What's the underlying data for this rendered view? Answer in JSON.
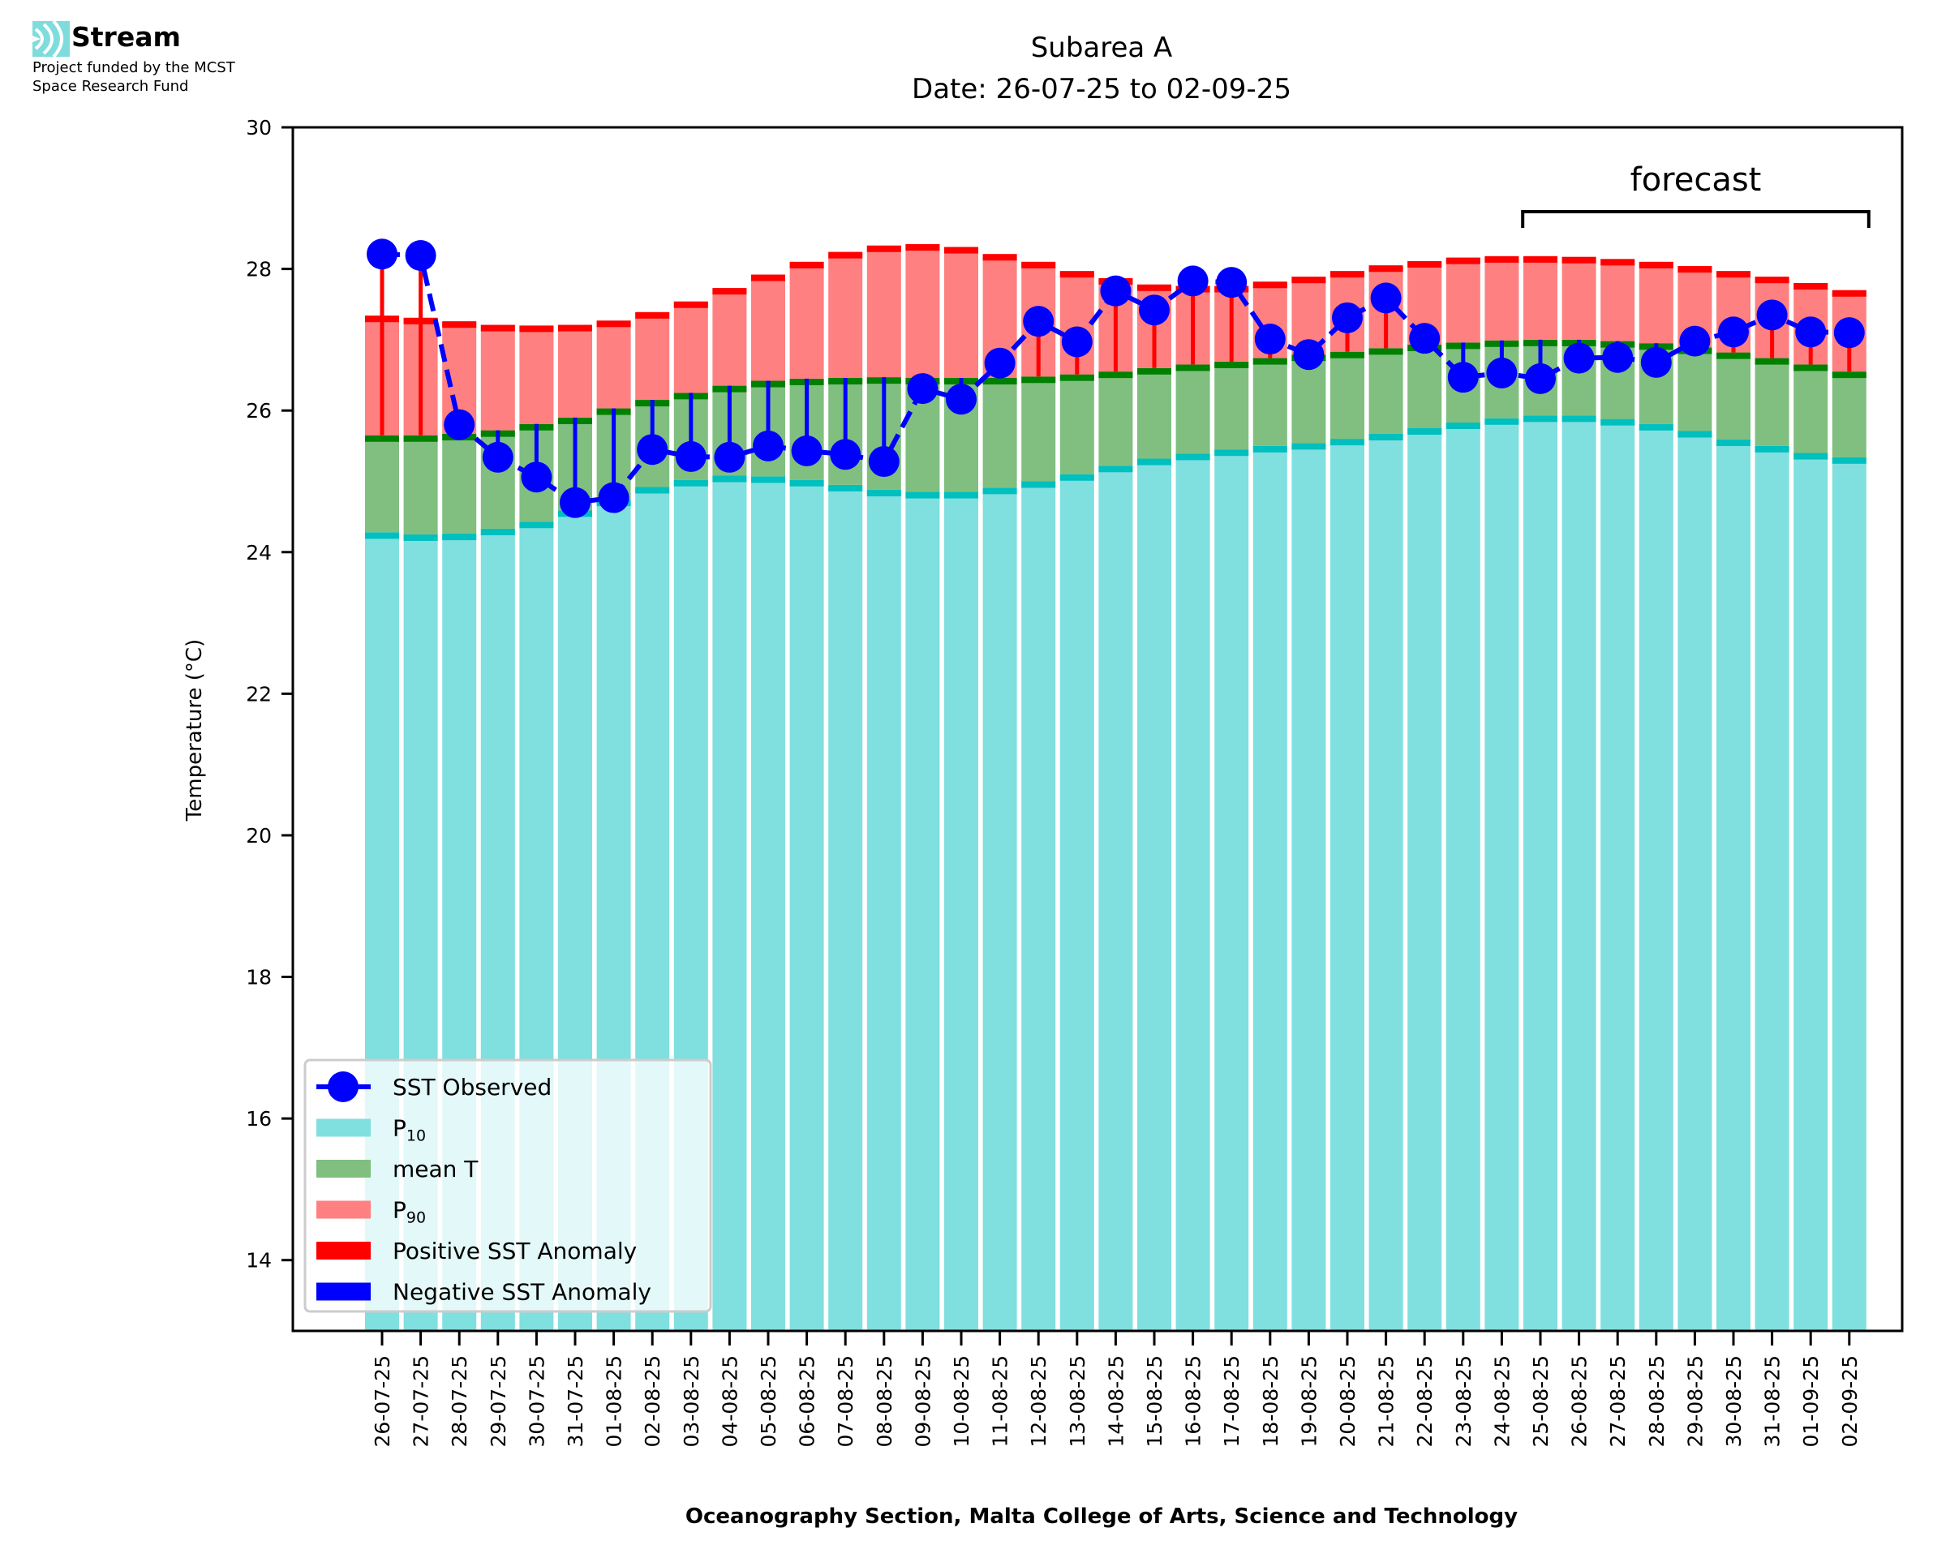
{
  "branding": {
    "logo_icon": "stream-waves-icon",
    "name": "Stream",
    "subtitle_line1": "Project funded by the MCST",
    "subtitle_line2": "Space Research Fund"
  },
  "colors": {
    "p10_fill": "#80dfdf",
    "p10_edge": "#00bfbf",
    "mean_fill": "#80bf80",
    "mean_edge": "#008000",
    "p90_fill": "#ff8080",
    "p90_edge": "#ff0000",
    "observed": "#0000ff",
    "positive_anomaly": "#ff0000",
    "negative_anomaly": "#0000ff"
  },
  "chart_data": {
    "type": "bar",
    "title": "Subarea A",
    "subtitle": "Date: 26-07-25 to 02-09-25",
    "xlabel": "Oceanography Section, Malta College of Arts, Science and Technology",
    "ylabel": "Temperature (°C)",
    "ylim": [
      13,
      30
    ],
    "yticks": [
      14,
      16,
      18,
      20,
      22,
      24,
      26,
      28,
      30
    ],
    "grid": false,
    "legend_position": "bottom-left",
    "annotation": {
      "text": "forecast",
      "from_category": "25-08-25",
      "to_category": "02-09-25"
    },
    "categories": [
      "26-07-25",
      "27-07-25",
      "28-07-25",
      "29-07-25",
      "30-07-25",
      "31-07-25",
      "01-08-25",
      "02-08-25",
      "03-08-25",
      "04-08-25",
      "05-08-25",
      "06-08-25",
      "07-08-25",
      "08-08-25",
      "09-08-25",
      "10-08-25",
      "11-08-25",
      "12-08-25",
      "13-08-25",
      "14-08-25",
      "15-08-25",
      "16-08-25",
      "17-08-25",
      "18-08-25",
      "19-08-25",
      "20-08-25",
      "21-08-25",
      "22-08-25",
      "23-08-25",
      "24-08-25",
      "25-08-25",
      "26-08-25",
      "27-08-25",
      "28-08-25",
      "29-08-25",
      "30-08-25",
      "31-08-25",
      "01-09-25",
      "02-09-25"
    ],
    "series": [
      {
        "name": "SST Observed",
        "kind": "line-marker",
        "style": "dashed",
        "values": [
          28.21,
          28.19,
          25.8,
          25.34,
          25.06,
          24.7,
          24.77,
          25.45,
          25.35,
          25.34,
          25.5,
          25.43,
          25.38,
          25.28,
          26.31,
          26.16,
          26.67,
          27.26,
          26.97,
          27.69,
          27.42,
          27.83,
          27.81,
          27.01,
          26.79,
          27.31,
          27.59,
          27.02,
          26.47,
          26.53,
          26.45,
          26.74,
          26.75,
          26.68,
          26.98,
          27.11,
          27.35,
          27.11,
          27.1
        ]
      },
      {
        "name": "P10",
        "kind": "bar",
        "values": [
          24.28,
          24.25,
          24.26,
          24.33,
          24.43,
          24.59,
          24.74,
          24.92,
          25.02,
          25.08,
          25.07,
          25.02,
          24.95,
          24.88,
          24.85,
          24.85,
          24.91,
          25.0,
          25.1,
          25.22,
          25.32,
          25.39,
          25.45,
          25.5,
          25.54,
          25.6,
          25.67,
          25.75,
          25.83,
          25.89,
          25.93,
          25.93,
          25.88,
          25.81,
          25.71,
          25.59,
          25.5,
          25.4,
          25.34
        ]
      },
      {
        "name": "mean T",
        "kind": "bar",
        "values": [
          25.65,
          25.65,
          25.67,
          25.72,
          25.81,
          25.9,
          26.03,
          26.15,
          26.25,
          26.35,
          26.42,
          26.45,
          26.46,
          26.47,
          26.46,
          26.46,
          26.46,
          26.48,
          26.51,
          26.55,
          26.6,
          26.65,
          26.69,
          26.74,
          26.79,
          26.83,
          26.88,
          26.93,
          26.96,
          26.99,
          27.0,
          27.0,
          26.98,
          26.95,
          26.89,
          26.82,
          26.74,
          26.65,
          26.55
        ]
      },
      {
        "name": "P90",
        "kind": "bar",
        "values": [
          27.34,
          27.31,
          27.26,
          27.21,
          27.2,
          27.21,
          27.27,
          27.39,
          27.54,
          27.73,
          27.92,
          28.1,
          28.24,
          28.33,
          28.35,
          28.31,
          28.21,
          28.1,
          27.97,
          27.87,
          27.78,
          27.76,
          27.76,
          27.82,
          27.89,
          27.97,
          28.05,
          28.11,
          28.16,
          28.18,
          28.18,
          28.17,
          28.14,
          28.1,
          28.04,
          27.97,
          27.89,
          27.8,
          27.7
        ]
      }
    ],
    "legend": [
      {
        "label": "SST Observed",
        "swatch": "line-marker",
        "color": "#0000ff"
      },
      {
        "label": "P",
        "sub": "10",
        "swatch": "patch",
        "color": "#80dfdf"
      },
      {
        "label": "mean T",
        "sub": "",
        "swatch": "patch",
        "color": "#80bf80"
      },
      {
        "label": "P",
        "sub": "90",
        "swatch": "patch",
        "color": "#ff8080"
      },
      {
        "label": "Positive SST Anomaly",
        "sub": "",
        "swatch": "patch",
        "color": "#ff0000"
      },
      {
        "label": "Negative SST Anomaly",
        "sub": "",
        "swatch": "patch",
        "color": "#0000ff"
      }
    ]
  }
}
